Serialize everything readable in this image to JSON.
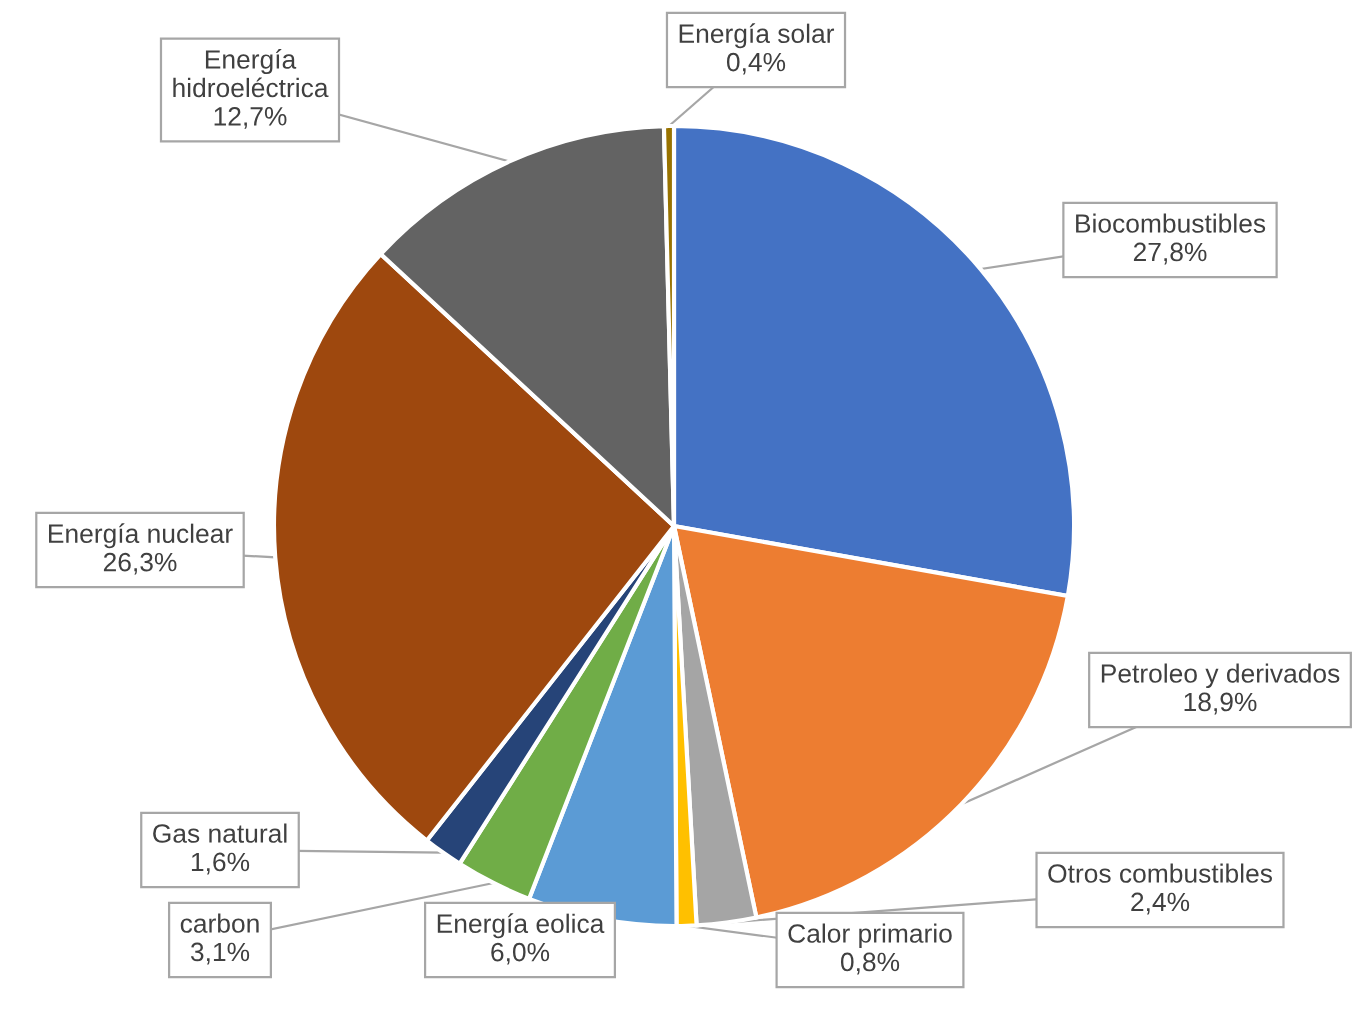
{
  "chart_data": {
    "type": "pie",
    "categories": [
      "Biocombustibles",
      "Petroleo y derivados",
      "Otros combustibles",
      "Calor primario",
      "Energía eolica",
      "carbon",
      "Gas natural",
      "Energía nuclear",
      "Energía\nhidroeléctrica",
      "Energía solar"
    ],
    "values": [
      27.8,
      18.9,
      2.4,
      0.8,
      6.0,
      3.1,
      1.6,
      26.3,
      12.7,
      0.4
    ],
    "value_labels": [
      "27,8%",
      "18,9%",
      "2,4%",
      "0,8%",
      "6,0%",
      "3,1%",
      "1,6%",
      "26,3%",
      "12,7%",
      "0,4%"
    ],
    "colors": [
      "#4472c4",
      "#ed7d31",
      "#a5a5a5",
      "#ffc000",
      "#5b9bd5",
      "#70ad47",
      "#264478",
      "#9e480e",
      "#636363",
      "#997300"
    ]
  }
}
